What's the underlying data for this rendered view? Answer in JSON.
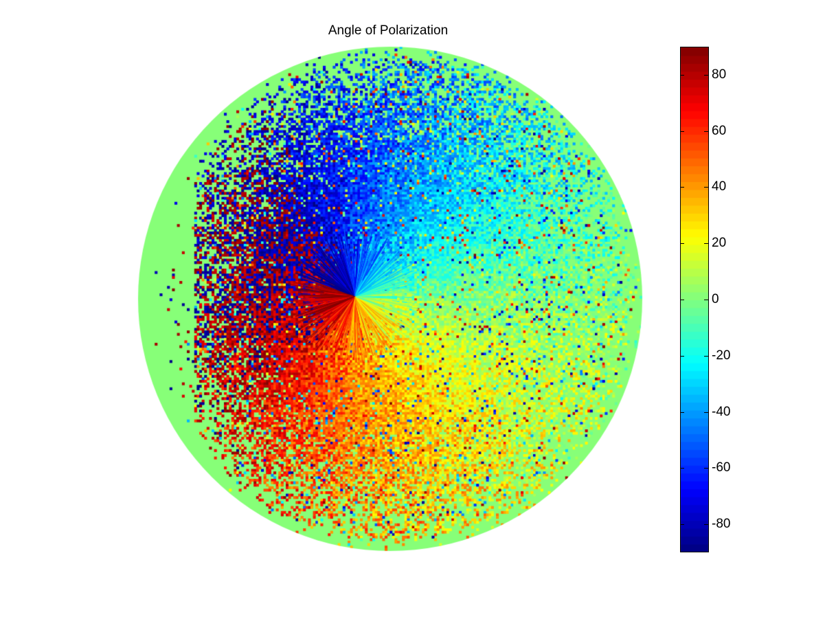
{
  "chart_data": {
    "type": "heatmap",
    "title": "Angle of Polarization",
    "shape": "circular",
    "xlabel": "",
    "ylabel": "",
    "colormap": "jet",
    "clim": [
      -90,
      90
    ],
    "colorbar": {
      "placement": "right",
      "ticks": [
        80,
        60,
        40,
        20,
        0,
        -20,
        -40,
        -60,
        -80
      ],
      "tick_labels": [
        "80",
        "60",
        "40",
        "20",
        "0",
        "-20",
        "-40",
        "-60",
        "-80"
      ]
    },
    "grid": false,
    "background_value": 0,
    "pattern": {
      "description_of_field": "angle varies with azimuth around an off-center singular point; values near -90 upper-left, -30 upper-right, +15 lower-right, +50 lower-center, +85 left",
      "upper_left_value": -85,
      "upper_right_value": -30,
      "right_value": 0,
      "lower_right_value": 18,
      "lower_value": 45,
      "lower_left_value": 75,
      "left_value": 88
    }
  }
}
